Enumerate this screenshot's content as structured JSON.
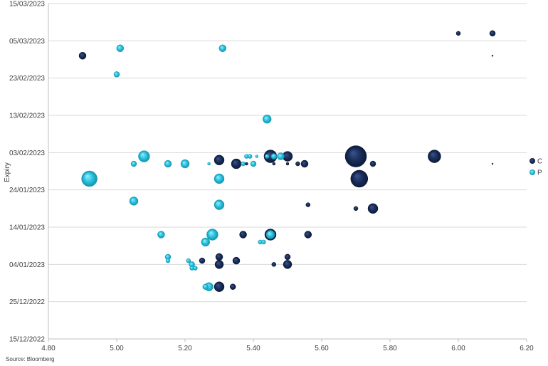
{
  "source_note": "Source: Bloomberg",
  "chart_data": {
    "type": "scatter",
    "subtype": "bubble",
    "title": "",
    "xlabel": "",
    "ylabel": "Expiry",
    "xlim": [
      4.8,
      6.2
    ],
    "ylim": [
      "15/12/2022",
      "15/03/2023"
    ],
    "x_ticks": [
      "4.80",
      "5.00",
      "5.20",
      "5.40",
      "5.60",
      "5.80",
      "6.00",
      "6.20"
    ],
    "y_ticks": [
      "15/12/2022",
      "25/12/2022",
      "04/01/2023",
      "14/01/2023",
      "24/01/2023",
      "03/02/2023",
      "13/02/2023",
      "23/02/2023",
      "05/03/2023",
      "15/03/2023"
    ],
    "grid": "horizontal",
    "legend": "right",
    "series": [
      {
        "name": "C",
        "color": "#1b2f5c",
        "points": [
          {
            "x": 4.9,
            "y": "01/03/2023",
            "size": 5
          },
          {
            "x": 6.0,
            "y": "07/03/2023",
            "size": 3
          },
          {
            "x": 6.1,
            "y": "07/03/2023",
            "size": 4
          },
          {
            "x": 6.1,
            "y": "01/03/2023",
            "size": 1
          },
          {
            "x": 5.3,
            "y": "01/02/2023",
            "size": 7
          },
          {
            "x": 5.35,
            "y": "31/01/2023",
            "size": 7
          },
          {
            "x": 5.38,
            "y": "31/01/2023",
            "size": 2
          },
          {
            "x": 5.45,
            "y": "02/02/2023",
            "size": 9
          },
          {
            "x": 5.46,
            "y": "31/01/2023",
            "size": 2
          },
          {
            "x": 5.5,
            "y": "02/02/2023",
            "size": 7
          },
          {
            "x": 5.5,
            "y": "31/01/2023",
            "size": 2
          },
          {
            "x": 5.53,
            "y": "31/01/2023",
            "size": 3
          },
          {
            "x": 5.55,
            "y": "31/01/2023",
            "size": 5
          },
          {
            "x": 5.7,
            "y": "02/02/2023",
            "size": 15
          },
          {
            "x": 5.75,
            "y": "31/01/2023",
            "size": 4
          },
          {
            "x": 5.93,
            "y": "02/02/2023",
            "size": 9
          },
          {
            "x": 6.1,
            "y": "31/01/2023",
            "size": 1
          },
          {
            "x": 5.71,
            "y": "27/01/2023",
            "size": 12
          },
          {
            "x": 5.56,
            "y": "20/01/2023",
            "size": 3
          },
          {
            "x": 5.7,
            "y": "19/01/2023",
            "size": 3
          },
          {
            "x": 5.75,
            "y": "19/01/2023",
            "size": 7
          },
          {
            "x": 5.37,
            "y": "12/01/2023",
            "size": 5
          },
          {
            "x": 5.45,
            "y": "12/01/2023",
            "size": 8
          },
          {
            "x": 5.56,
            "y": "12/01/2023",
            "size": 5
          },
          {
            "x": 5.3,
            "y": "06/01/2023",
            "size": 5
          },
          {
            "x": 5.25,
            "y": "05/01/2023",
            "size": 4
          },
          {
            "x": 5.3,
            "y": "04/01/2023",
            "size": 6
          },
          {
            "x": 5.35,
            "y": "05/01/2023",
            "size": 5
          },
          {
            "x": 5.46,
            "y": "04/01/2023",
            "size": 3
          },
          {
            "x": 5.5,
            "y": "06/01/2023",
            "size": 4
          },
          {
            "x": 5.5,
            "y": "04/01/2023",
            "size": 6
          },
          {
            "x": 5.3,
            "y": "29/12/2022",
            "size": 7
          },
          {
            "x": 5.34,
            "y": "29/12/2022",
            "size": 4
          }
        ]
      },
      {
        "name": "P",
        "color": "#2bc4e0",
        "points": [
          {
            "x": 5.01,
            "y": "03/03/2023",
            "size": 5
          },
          {
            "x": 5.31,
            "y": "03/03/2023",
            "size": 5
          },
          {
            "x": 5.0,
            "y": "24/02/2023",
            "size": 4
          },
          {
            "x": 5.44,
            "y": "12/02/2023",
            "size": 6
          },
          {
            "x": 5.05,
            "y": "31/01/2023",
            "size": 4
          },
          {
            "x": 5.08,
            "y": "02/02/2023",
            "size": 8
          },
          {
            "x": 5.15,
            "y": "31/01/2023",
            "size": 5
          },
          {
            "x": 5.2,
            "y": "31/01/2023",
            "size": 6
          },
          {
            "x": 5.27,
            "y": "31/01/2023",
            "size": 2
          },
          {
            "x": 5.38,
            "y": "02/02/2023",
            "size": 3
          },
          {
            "x": 5.39,
            "y": "02/02/2023",
            "size": 3
          },
          {
            "x": 5.4,
            "y": "31/01/2023",
            "size": 4
          },
          {
            "x": 5.41,
            "y": "02/02/2023",
            "size": 2
          },
          {
            "x": 5.37,
            "y": "31/01/2023",
            "size": 3
          },
          {
            "x": 5.44,
            "y": "02/02/2023",
            "size": 3
          },
          {
            "x": 5.46,
            "y": "02/02/2023",
            "size": 4
          },
          {
            "x": 5.48,
            "y": "02/02/2023",
            "size": 5
          },
          {
            "x": 4.92,
            "y": "27/01/2023",
            "size": 11
          },
          {
            "x": 5.3,
            "y": "27/01/2023",
            "size": 7
          },
          {
            "x": 5.05,
            "y": "21/01/2023",
            "size": 6
          },
          {
            "x": 5.3,
            "y": "20/01/2023",
            "size": 7
          },
          {
            "x": 5.13,
            "y": "12/01/2023",
            "size": 5
          },
          {
            "x": 5.28,
            "y": "12/01/2023",
            "size": 8
          },
          {
            "x": 5.26,
            "y": "10/01/2023",
            "size": 6
          },
          {
            "x": 5.42,
            "y": "10/01/2023",
            "size": 3
          },
          {
            "x": 5.43,
            "y": "10/01/2023",
            "size": 3
          },
          {
            "x": 5.45,
            "y": "12/01/2023",
            "size": 6
          },
          {
            "x": 5.15,
            "y": "06/01/2023",
            "size": 4
          },
          {
            "x": 5.15,
            "y": "05/01/2023",
            "size": 3
          },
          {
            "x": 5.21,
            "y": "05/01/2023",
            "size": 3
          },
          {
            "x": 5.22,
            "y": "04/01/2023",
            "size": 4
          },
          {
            "x": 5.22,
            "y": "03/01/2023",
            "size": 3
          },
          {
            "x": 5.23,
            "y": "03/01/2023",
            "size": 3
          },
          {
            "x": 5.26,
            "y": "29/12/2022",
            "size": 4
          },
          {
            "x": 5.27,
            "y": "29/12/2022",
            "size": 6
          }
        ]
      }
    ]
  }
}
